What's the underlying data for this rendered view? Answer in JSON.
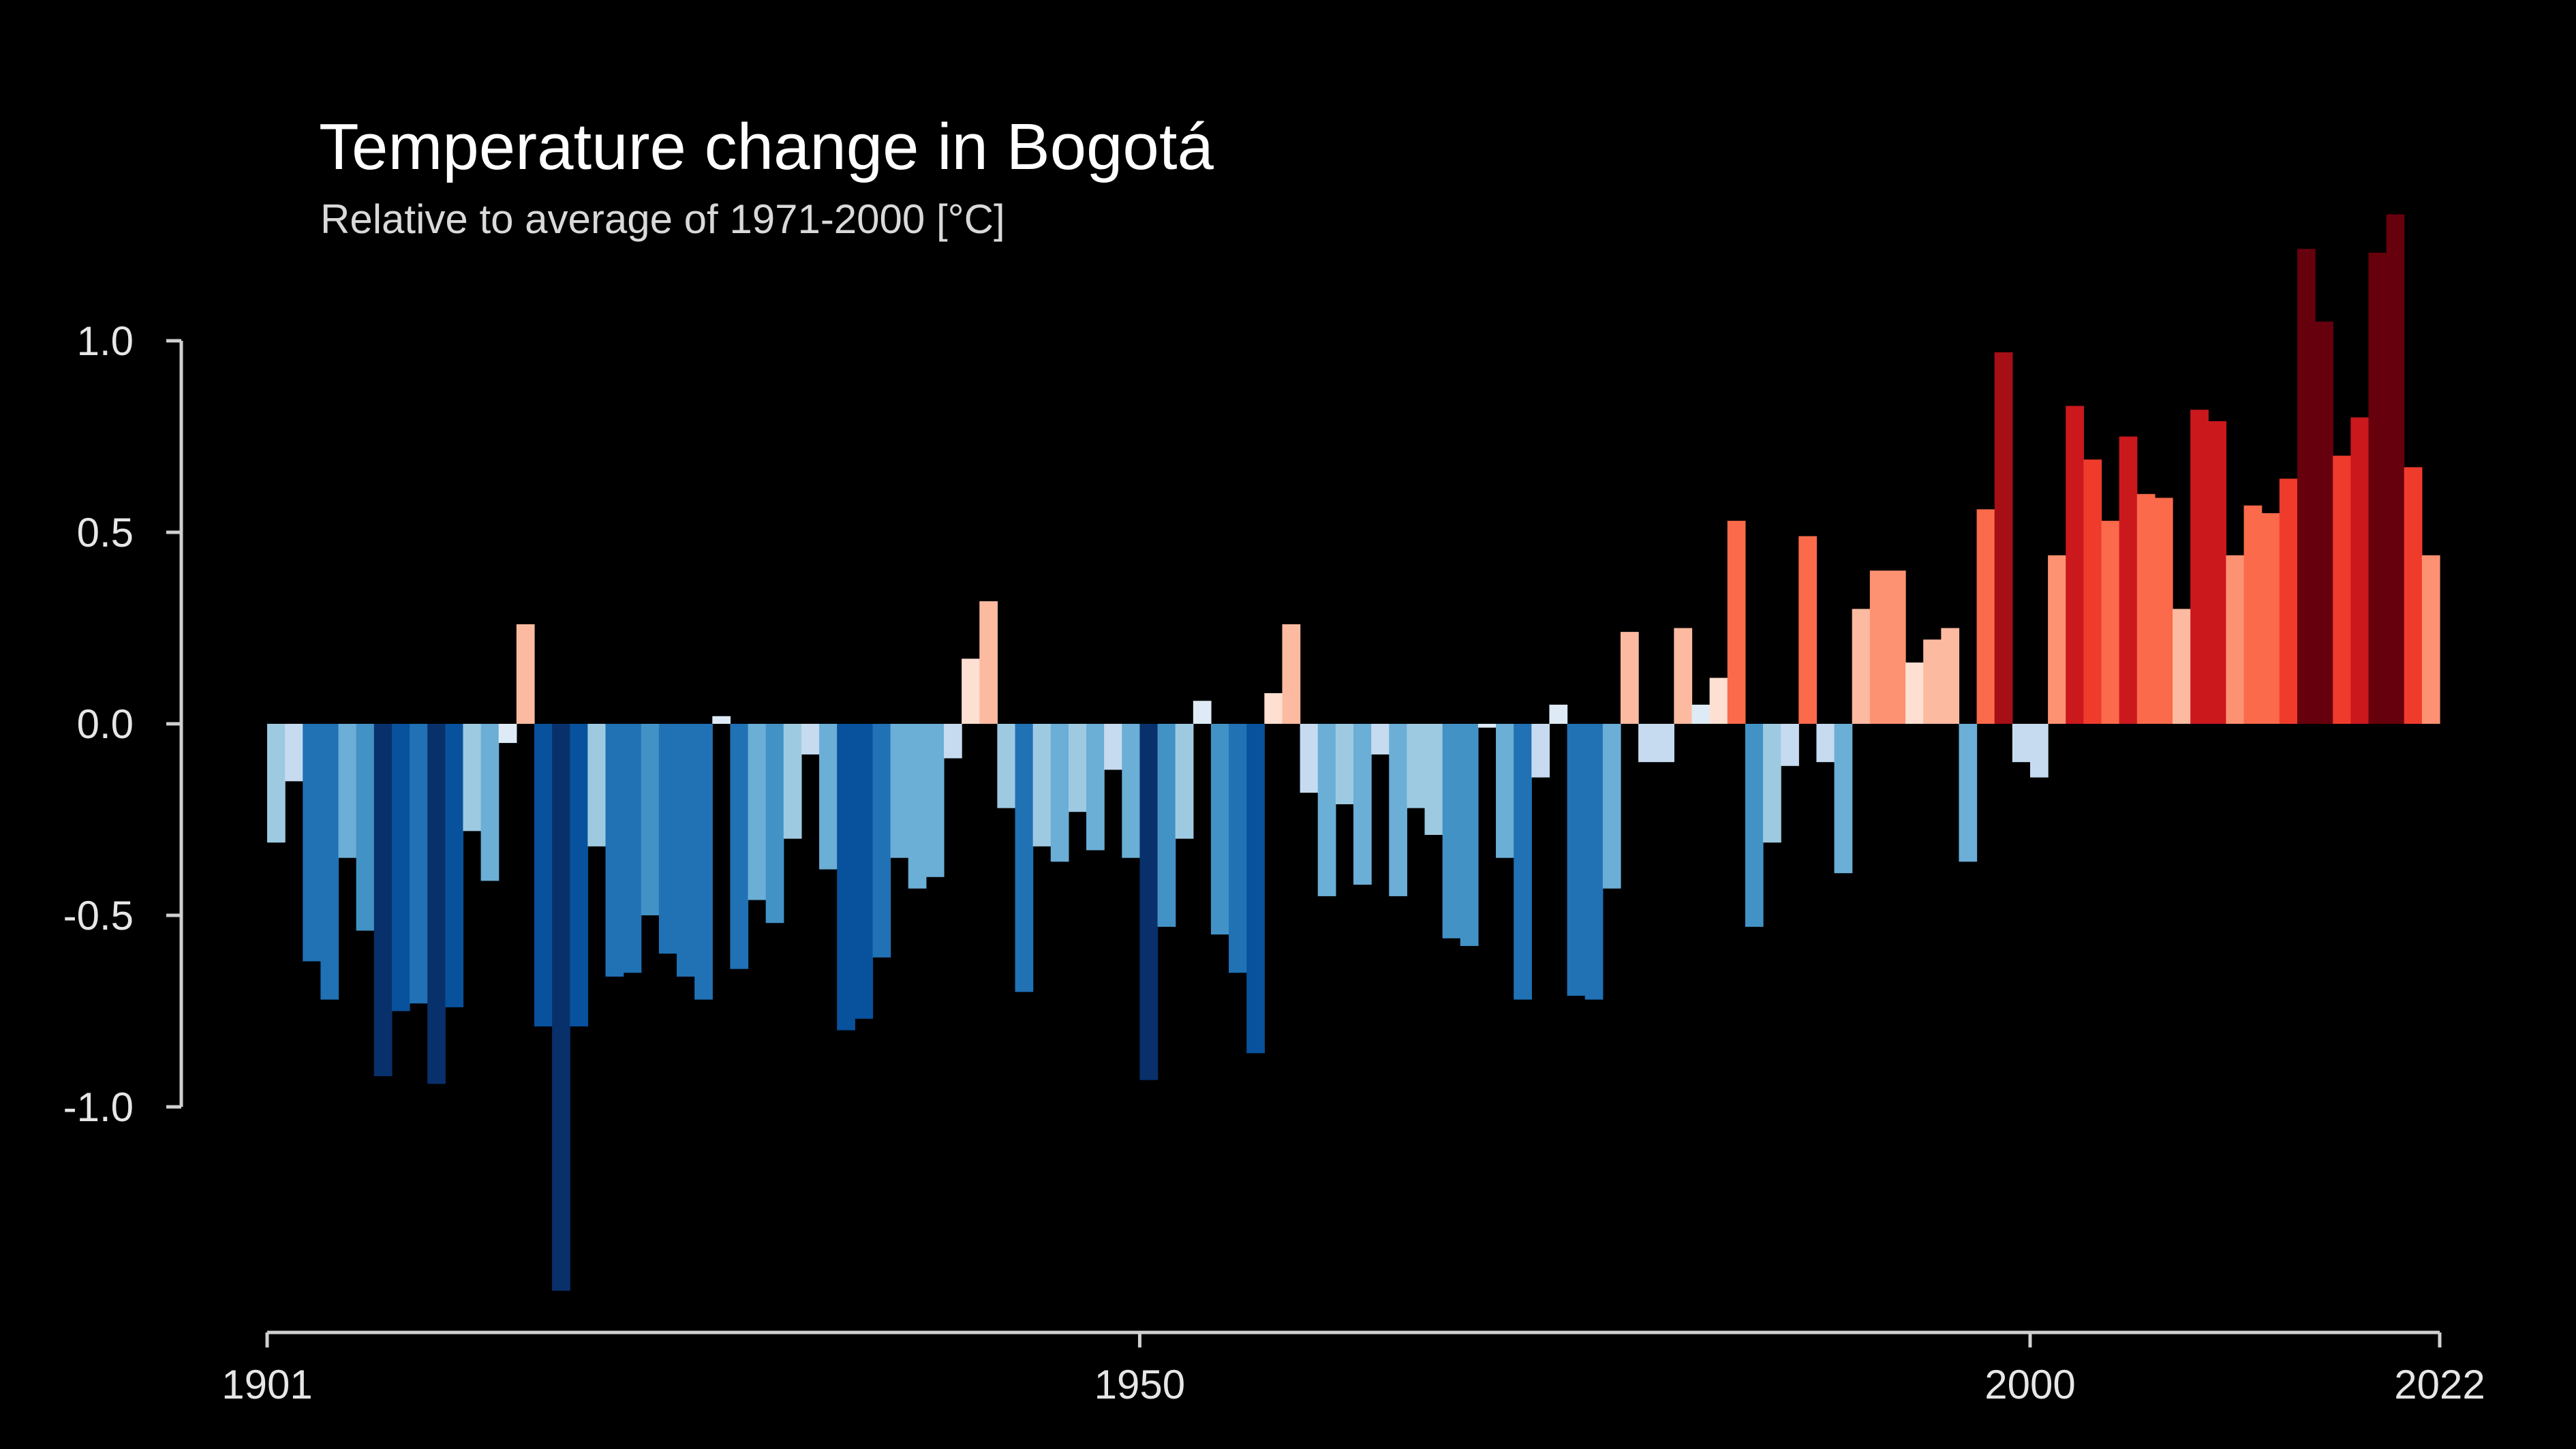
{
  "chart_data": {
    "type": "bar",
    "title": "Temperature change in Bogotá",
    "subtitle": "Relative to average of 1971-2000  [°C]",
    "xlabel": "",
    "ylabel": "",
    "x_start": 1901,
    "x_end": 2022,
    "ylim": [
      -1.5,
      1.35
    ],
    "y_axis_range": [
      -1.0,
      1.0
    ],
    "y_ticks": [
      {
        "value": 1.0,
        "label": "1.0"
      },
      {
        "value": 0.5,
        "label": "0.5"
      },
      {
        "value": 0.0,
        "label": "0.0"
      },
      {
        "value": -0.5,
        "label": "-0.5"
      },
      {
        "value": -1.0,
        "label": "-1.0"
      }
    ],
    "x_ticks": [
      {
        "value": 1901,
        "label": "1901"
      },
      {
        "value": 1950,
        "label": "1950"
      },
      {
        "value": 2000,
        "label": "2000"
      },
      {
        "value": 2022,
        "label": "2022"
      }
    ],
    "grid": false,
    "legend": "none",
    "colors": {
      "background": "#000000",
      "axis": "#d0d0d0",
      "warming_stripes_scale": [
        "#08306b",
        "#08519c",
        "#2171b5",
        "#4292c6",
        "#6baed6",
        "#9ecae1",
        "#c6dbef",
        "#deebf7",
        "#fee0d2",
        "#fcbba1",
        "#fc9272",
        "#fb6a4a",
        "#ef3b2c",
        "#cb181d",
        "#a50f15",
        "#67000d"
      ]
    },
    "years": [
      1901,
      1902,
      1903,
      1904,
      1905,
      1906,
      1907,
      1908,
      1909,
      1910,
      1911,
      1912,
      1913,
      1914,
      1915,
      1916,
      1917,
      1918,
      1919,
      1920,
      1921,
      1922,
      1923,
      1924,
      1925,
      1926,
      1927,
      1928,
      1929,
      1930,
      1931,
      1932,
      1933,
      1934,
      1935,
      1936,
      1937,
      1938,
      1939,
      1940,
      1941,
      1942,
      1943,
      1944,
      1945,
      1946,
      1947,
      1948,
      1949,
      1950,
      1951,
      1952,
      1953,
      1954,
      1955,
      1956,
      1957,
      1958,
      1959,
      1960,
      1961,
      1962,
      1963,
      1964,
      1965,
      1966,
      1967,
      1968,
      1969,
      1970,
      1971,
      1972,
      1973,
      1974,
      1975,
      1976,
      1977,
      1978,
      1979,
      1980,
      1981,
      1982,
      1983,
      1984,
      1985,
      1986,
      1987,
      1988,
      1989,
      1990,
      1991,
      1992,
      1993,
      1994,
      1995,
      1996,
      1997,
      1998,
      1999,
      2000,
      2001,
      2002,
      2003,
      2004,
      2005,
      2006,
      2007,
      2008,
      2009,
      2010,
      2011,
      2012,
      2013,
      2014,
      2015,
      2016,
      2017,
      2018,
      2019,
      2020,
      2021,
      2022
    ],
    "values": [
      -0.31,
      -0.15,
      -0.62,
      -0.72,
      -0.35,
      -0.54,
      -0.92,
      -0.75,
      -0.73,
      -0.94,
      -0.74,
      -0.28,
      -0.41,
      -0.05,
      0.26,
      -0.79,
      -1.48,
      -0.79,
      -0.32,
      -0.66,
      -0.65,
      -0.5,
      -0.6,
      -0.66,
      -0.72,
      0.02,
      -0.64,
      -0.46,
      -0.52,
      -0.3,
      -0.08,
      -0.38,
      -0.8,
      -0.77,
      -0.61,
      -0.35,
      -0.43,
      -0.4,
      -0.09,
      0.17,
      0.32,
      -0.22,
      -0.7,
      -0.32,
      -0.36,
      -0.23,
      -0.33,
      -0.12,
      -0.35,
      -0.93,
      -0.53,
      -0.3,
      0.06,
      -0.55,
      -0.65,
      -0.86,
      0.08,
      0.26,
      -0.18,
      -0.45,
      -0.21,
      -0.42,
      -0.08,
      -0.45,
      -0.22,
      -0.29,
      -0.56,
      -0.58,
      -0.01,
      -0.35,
      -0.72,
      -0.14,
      0.05,
      -0.71,
      -0.72,
      -0.43,
      0.24,
      -0.1,
      -0.1,
      0.25,
      0.05,
      0.12,
      0.53,
      -0.53,
      -0.31,
      -0.11,
      0.49,
      -0.1,
      -0.39,
      0.3,
      0.4,
      0.4,
      0.16,
      0.22,
      0.25,
      -0.36,
      0.56,
      0.97,
      -0.1,
      -0.14,
      0.44,
      0.83,
      0.69,
      0.53,
      0.75,
      0.6,
      0.59,
      0.3,
      0.82,
      0.79,
      0.44,
      0.57,
      0.55,
      0.64,
      1.24,
      1.05,
      0.7,
      0.8,
      1.23,
      1.33,
      0.67,
      0.44
    ]
  }
}
